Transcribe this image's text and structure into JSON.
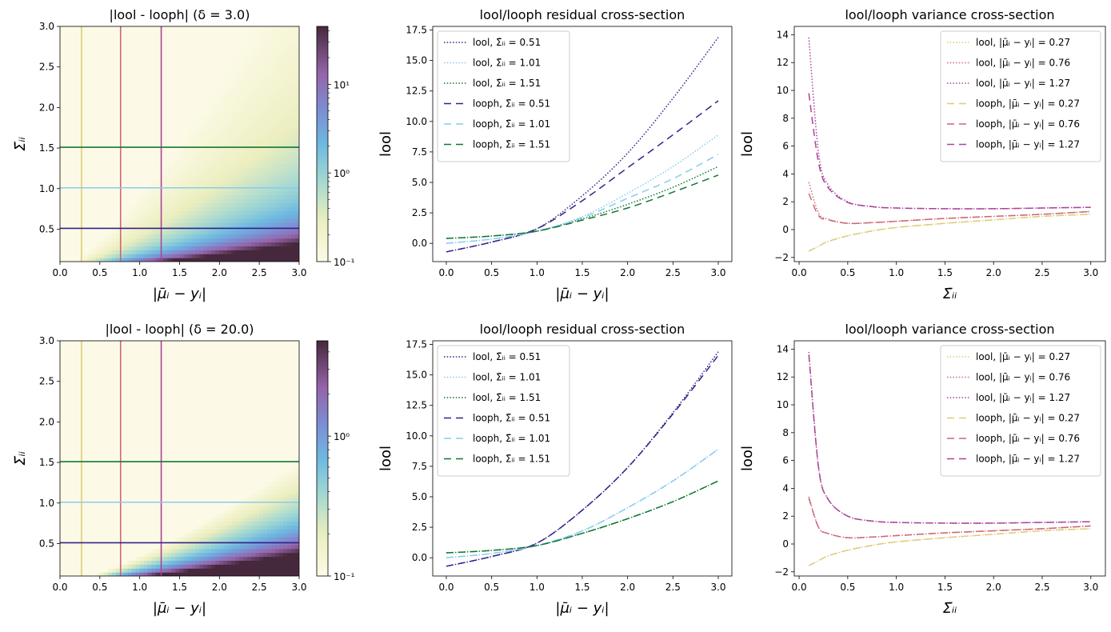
{
  "chart_data": [
    {
      "panel": "top-left",
      "type": "heatmap",
      "title": "|lool - looph| (δ = 3.0)",
      "xlabel": "|μ̄ᵢ − yᵢ|",
      "ylabel": "Σ̄ᵢᵢ",
      "xlim": [
        0,
        3.0
      ],
      "ylim": [
        0.1,
        3.0
      ],
      "x_ticks": [
        "0.0",
        "0.5",
        "1.0",
        "1.5",
        "2.0",
        "2.5",
        "3.0"
      ],
      "y_ticks": [
        "0.5",
        "1.0",
        "1.5",
        "2.0",
        "2.5",
        "3.0"
      ],
      "colorbar": {
        "scale": "log",
        "ticks": [
          "10⁻¹",
          "10⁰",
          "10¹"
        ],
        "min": 0.1,
        "max": 45
      },
      "vlines": [
        {
          "x": 0.27,
          "color": "#DDCC77"
        },
        {
          "x": 0.76,
          "color": "#CC6677"
        },
        {
          "x": 1.27,
          "color": "#AA4499"
        }
      ],
      "hlines": [
        {
          "y": 0.51,
          "color": "#332288"
        },
        {
          "y": 1.01,
          "color": "#88CCEE"
        },
        {
          "y": 1.51,
          "color": "#117733"
        }
      ]
    },
    {
      "panel": "top-middle",
      "type": "line",
      "title": "lool/looph residual cross-section",
      "xlabel": "|μ̄ᵢ − yᵢ|",
      "ylabel": "lool",
      "xlim": [
        -0.15,
        3.15
      ],
      "ylim": [
        -1.5,
        17.8
      ],
      "x_ticks": [
        "0.0",
        "0.5",
        "1.0",
        "1.5",
        "2.0",
        "2.5",
        "3.0"
      ],
      "y_ticks": [
        "0.0",
        "2.5",
        "5.0",
        "7.5",
        "10.0",
        "12.5",
        "15.0",
        "17.5"
      ],
      "x": [
        0.0,
        0.5,
        1.0,
        1.5,
        2.0,
        2.5,
        3.0
      ],
      "series": [
        {
          "name": "lool, Σ̄ᵢᵢ = 0.51",
          "style": "dotted",
          "color": "#332288",
          "values": [
            -0.7,
            0.1,
            1.2,
            3.9,
            7.4,
            11.9,
            16.9
          ]
        },
        {
          "name": "lool, Σ̄ᵢᵢ = 1.01",
          "style": "dotted",
          "color": "#88CCEE",
          "values": [
            0.0,
            0.35,
            1.0,
            2.2,
            4.1,
            6.3,
            8.9
          ]
        },
        {
          "name": "lool, Σ̄ᵢᵢ = 1.51",
          "style": "dotted",
          "color": "#117733",
          "values": [
            0.4,
            0.6,
            1.0,
            2.0,
            3.2,
            4.6,
            6.3
          ]
        },
        {
          "name": "looph, Σ̄ᵢᵢ = 0.51",
          "style": "dashed",
          "color": "#332288",
          "values": [
            -0.7,
            0.1,
            1.2,
            3.5,
            6.2,
            8.9,
            11.7
          ]
        },
        {
          "name": "looph, Σ̄ᵢᵢ = 1.01",
          "style": "dashed",
          "color": "#88CCEE",
          "values": [
            0.0,
            0.35,
            1.0,
            2.1,
            3.7,
            5.3,
            7.3
          ]
        },
        {
          "name": "looph, Σ̄ᵢᵢ = 1.51",
          "style": "dashed",
          "color": "#117733",
          "values": [
            0.4,
            0.6,
            1.0,
            1.9,
            2.9,
            4.2,
            5.6
          ]
        }
      ]
    },
    {
      "panel": "top-right",
      "type": "line",
      "title": "lool/looph variance cross-section",
      "xlabel": "Σ̄ᵢᵢ",
      "ylabel": "lool",
      "xlim": [
        -0.05,
        3.15
      ],
      "ylim": [
        -2.3,
        14.6
      ],
      "x_ticks": [
        "0.0",
        "0.5",
        "1.0",
        "1.5",
        "2.0",
        "2.5",
        "3.0"
      ],
      "y_ticks": [
        "−2",
        "0",
        "2",
        "4",
        "6",
        "8",
        "10",
        "12",
        "14"
      ],
      "x": [
        0.1,
        0.2,
        0.3,
        0.5,
        0.75,
        1.0,
        1.5,
        2.0,
        2.5,
        3.0
      ],
      "series": [
        {
          "name": "lool, |μ̄ᵢ − yᵢ| = 0.27",
          "style": "dotted",
          "color": "#DDCC77",
          "values": [
            -1.55,
            -1.2,
            -0.85,
            -0.45,
            -0.1,
            0.15,
            0.45,
            0.7,
            0.95,
            1.1
          ]
        },
        {
          "name": "lool, |μ̄ᵢ − yᵢ| = 0.76",
          "style": "dotted",
          "color": "#CC6677",
          "values": [
            3.4,
            1.2,
            0.75,
            0.45,
            0.5,
            0.6,
            0.8,
            0.95,
            1.1,
            1.3
          ]
        },
        {
          "name": "lool, |μ̄ᵢ − yᵢ| = 1.27",
          "style": "dotted",
          "color": "#AA4499",
          "values": [
            13.8,
            5.5,
            3.2,
            2.0,
            1.65,
            1.55,
            1.5,
            1.5,
            1.55,
            1.6
          ]
        },
        {
          "name": "looph, |μ̄ᵢ − yᵢ| = 0.27",
          "style": "dashed",
          "color": "#DDCC77",
          "values": [
            -1.55,
            -1.2,
            -0.85,
            -0.45,
            -0.1,
            0.15,
            0.45,
            0.7,
            0.95,
            1.1
          ]
        },
        {
          "name": "looph, |μ̄ᵢ − yᵢ| = 0.76",
          "style": "dashed",
          "color": "#CC6677",
          "values": [
            2.6,
            1.0,
            0.7,
            0.45,
            0.5,
            0.6,
            0.8,
            0.95,
            1.1,
            1.3
          ]
        },
        {
          "name": "looph, |μ̄ᵢ − yᵢ| = 1.27",
          "style": "dashed",
          "color": "#AA4499",
          "values": [
            9.8,
            4.8,
            3.0,
            1.95,
            1.65,
            1.55,
            1.5,
            1.5,
            1.55,
            1.6
          ]
        }
      ]
    },
    {
      "panel": "bottom-left",
      "type": "heatmap",
      "title": "|lool - looph| (δ = 20.0)",
      "xlabel": "|μ̄ᵢ − yᵢ|",
      "ylabel": "Σ̄ᵢᵢ",
      "xlim": [
        0,
        3.0
      ],
      "ylim": [
        0.1,
        3.0
      ],
      "x_ticks": [
        "0.0",
        "0.5",
        "1.0",
        "1.5",
        "2.0",
        "2.5",
        "3.0"
      ],
      "y_ticks": [
        "0.5",
        "1.0",
        "1.5",
        "2.0",
        "2.5",
        "3.0"
      ],
      "colorbar": {
        "scale": "log",
        "ticks": [
          "10⁻¹",
          "10⁰"
        ],
        "min": 0.1,
        "max": 4.8
      },
      "vlines": [
        {
          "x": 0.27,
          "color": "#DDCC77"
        },
        {
          "x": 0.76,
          "color": "#CC6677"
        },
        {
          "x": 1.27,
          "color": "#AA4499"
        }
      ],
      "hlines": [
        {
          "y": 0.51,
          "color": "#332288"
        },
        {
          "y": 1.01,
          "color": "#88CCEE"
        },
        {
          "y": 1.51,
          "color": "#117733"
        }
      ]
    },
    {
      "panel": "bottom-middle",
      "type": "line",
      "title": "lool/looph residual cross-section",
      "xlabel": "|μ̄ᵢ − yᵢ|",
      "ylabel": "lool",
      "xlim": [
        -0.15,
        3.15
      ],
      "ylim": [
        -1.5,
        17.8
      ],
      "x_ticks": [
        "0.0",
        "0.5",
        "1.0",
        "1.5",
        "2.0",
        "2.5",
        "3.0"
      ],
      "y_ticks": [
        "0.0",
        "2.5",
        "5.0",
        "7.5",
        "10.0",
        "12.5",
        "15.0",
        "17.5"
      ],
      "x": [
        0.0,
        0.5,
        1.0,
        1.5,
        2.0,
        2.5,
        3.0
      ],
      "series": [
        {
          "name": "lool, Σ̄ᵢᵢ = 0.51",
          "style": "dotted",
          "color": "#332288",
          "values": [
            -0.7,
            0.1,
            1.2,
            3.9,
            7.4,
            11.9,
            16.9
          ]
        },
        {
          "name": "lool, Σ̄ᵢᵢ = 1.01",
          "style": "dotted",
          "color": "#88CCEE",
          "values": [
            0.0,
            0.35,
            1.0,
            2.2,
            4.1,
            6.3,
            8.9
          ]
        },
        {
          "name": "lool, Σ̄ᵢᵢ = 1.51",
          "style": "dotted",
          "color": "#117733",
          "values": [
            0.4,
            0.6,
            1.0,
            2.0,
            3.2,
            4.6,
            6.3
          ]
        },
        {
          "name": "looph, Σ̄ᵢᵢ = 0.51",
          "style": "dashed",
          "color": "#332288",
          "values": [
            -0.7,
            0.1,
            1.2,
            3.9,
            7.4,
            11.8,
            16.6
          ]
        },
        {
          "name": "looph, Σ̄ᵢᵢ = 1.01",
          "style": "dashed",
          "color": "#88CCEE",
          "values": [
            0.0,
            0.35,
            1.0,
            2.2,
            4.1,
            6.3,
            8.9
          ]
        },
        {
          "name": "looph, Σ̄ᵢᵢ = 1.51",
          "style": "dashed",
          "color": "#117733",
          "values": [
            0.4,
            0.6,
            1.0,
            2.0,
            3.2,
            4.6,
            6.3
          ]
        }
      ]
    },
    {
      "panel": "bottom-right",
      "type": "line",
      "title": "lool/looph variance cross-section",
      "xlabel": "Σ̄ᵢᵢ",
      "ylabel": "lool",
      "xlim": [
        -0.05,
        3.15
      ],
      "ylim": [
        -2.3,
        14.6
      ],
      "x_ticks": [
        "0.0",
        "0.5",
        "1.0",
        "1.5",
        "2.0",
        "2.5",
        "3.0"
      ],
      "y_ticks": [
        "−2",
        "0",
        "2",
        "4",
        "6",
        "8",
        "10",
        "12",
        "14"
      ],
      "x": [
        0.1,
        0.2,
        0.3,
        0.5,
        0.75,
        1.0,
        1.5,
        2.0,
        2.5,
        3.0
      ],
      "series": [
        {
          "name": "lool, |μ̄ᵢ − yᵢ| = 0.27",
          "style": "dotted",
          "color": "#DDCC77",
          "values": [
            -1.55,
            -1.2,
            -0.85,
            -0.45,
            -0.1,
            0.15,
            0.45,
            0.7,
            0.95,
            1.1
          ]
        },
        {
          "name": "lool, |μ̄ᵢ − yᵢ| = 0.76",
          "style": "dotted",
          "color": "#CC6677",
          "values": [
            3.4,
            1.2,
            0.75,
            0.45,
            0.5,
            0.6,
            0.8,
            0.95,
            1.1,
            1.3
          ]
        },
        {
          "name": "lool, |μ̄ᵢ − yᵢ| = 1.27",
          "style": "dotted",
          "color": "#AA4499",
          "values": [
            13.8,
            5.5,
            3.2,
            2.0,
            1.65,
            1.55,
            1.5,
            1.5,
            1.55,
            1.6
          ]
        },
        {
          "name": "looph, |μ̄ᵢ − yᵢ| = 0.27",
          "style": "dashed",
          "color": "#DDCC77",
          "values": [
            -1.55,
            -1.2,
            -0.85,
            -0.45,
            -0.1,
            0.15,
            0.45,
            0.7,
            0.95,
            1.1
          ]
        },
        {
          "name": "looph, |μ̄ᵢ − yᵢ| = 0.76",
          "style": "dashed",
          "color": "#CC6677",
          "values": [
            3.3,
            1.2,
            0.75,
            0.45,
            0.5,
            0.6,
            0.8,
            0.95,
            1.1,
            1.3
          ]
        },
        {
          "name": "looph, |μ̄ᵢ − yᵢ| = 1.27",
          "style": "dashed",
          "color": "#AA4499",
          "values": [
            13.6,
            5.5,
            3.2,
            2.0,
            1.65,
            1.55,
            1.5,
            1.5,
            1.55,
            1.6
          ]
        }
      ]
    }
  ]
}
